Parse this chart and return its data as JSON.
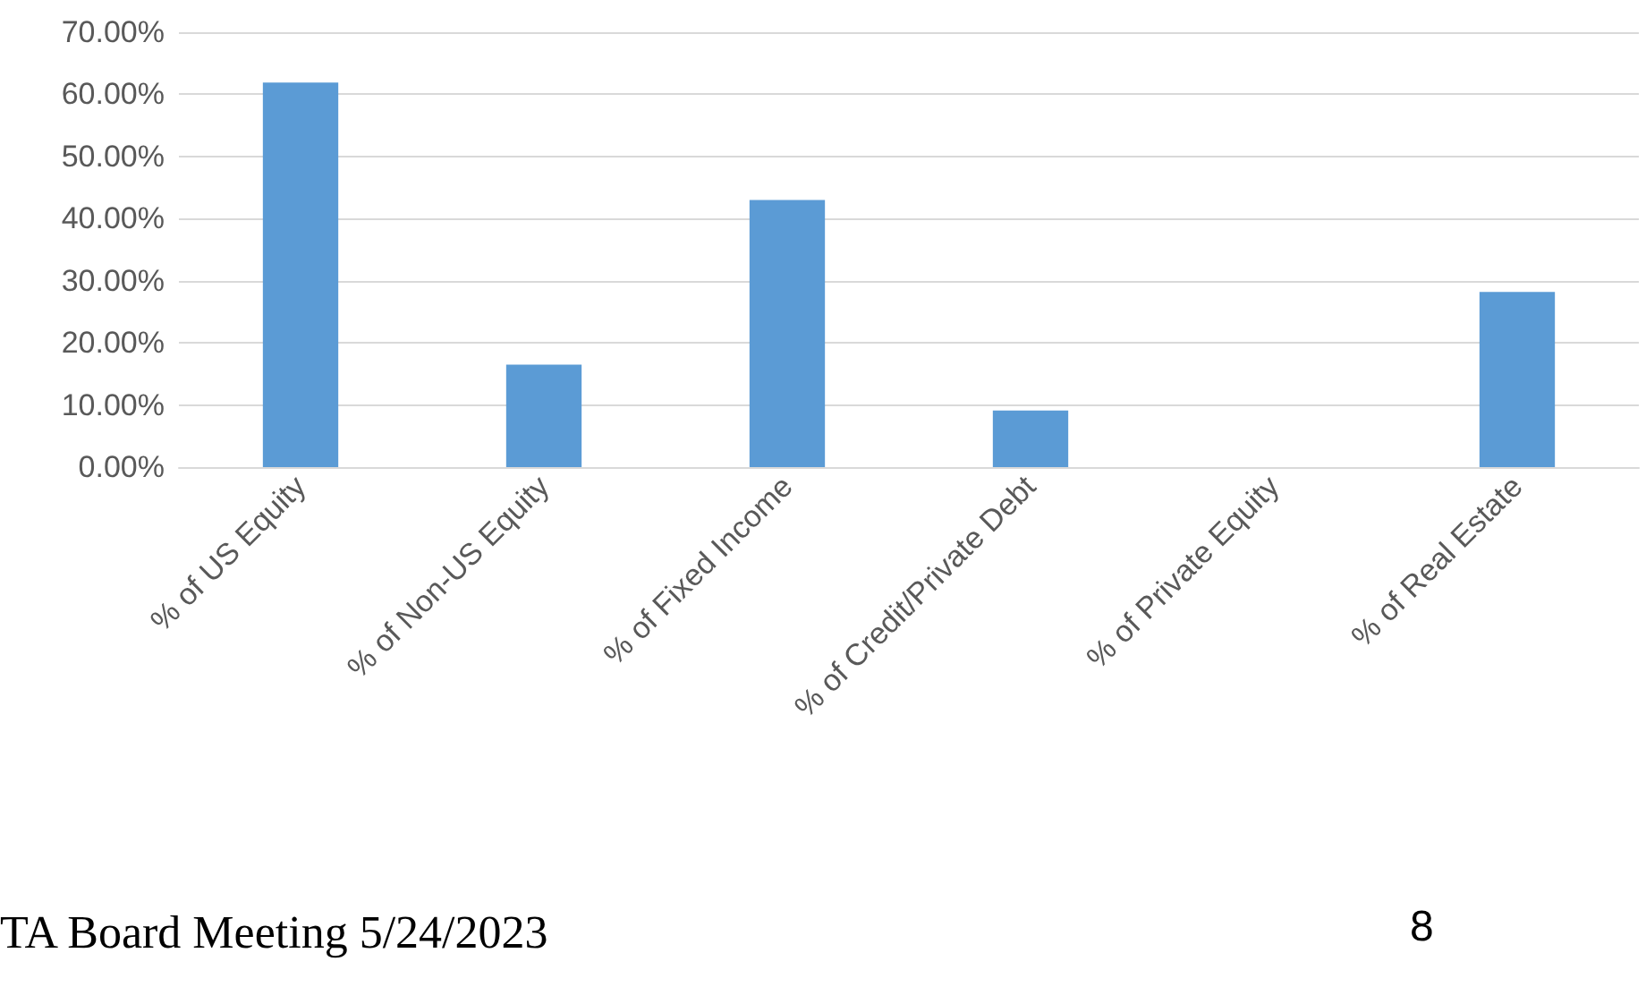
{
  "chart_data": {
    "type": "bar",
    "categories": [
      "% of US Equity",
      "% of Non-US Equity",
      "% of Fixed Income",
      "% of Credit/Private Debt",
      "% of Private Equity",
      "% of Real Estate"
    ],
    "values": [
      61.9,
      16.5,
      43.0,
      9.1,
      0,
      28.2
    ],
    "color": "#5b9bd5",
    "ylim": [
      0,
      70
    ],
    "yticks": [
      {
        "value": 0,
        "label": "0.00%"
      },
      {
        "value": 10,
        "label": "10.00%"
      },
      {
        "value": 20,
        "label": "20.00%"
      },
      {
        "value": 30,
        "label": "30.00%"
      },
      {
        "value": 40,
        "label": "40.00%"
      },
      {
        "value": 50,
        "label": "50.00%"
      },
      {
        "value": 60,
        "label": "60.00%"
      },
      {
        "value": 70,
        "label": "70.00%"
      }
    ],
    "grid": true,
    "annotations": [
      "TA Board Meeting 5/24/2023",
      "8"
    ]
  }
}
